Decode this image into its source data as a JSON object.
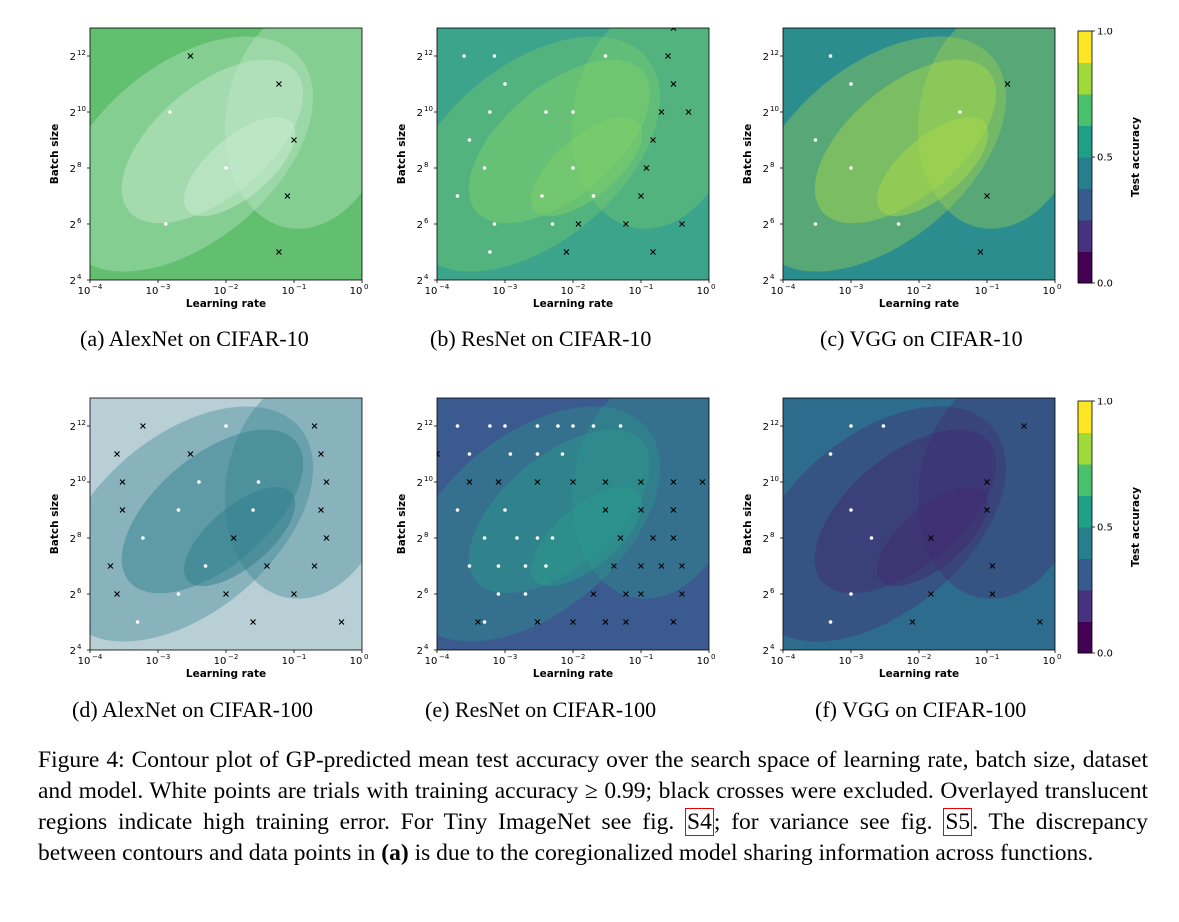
{
  "panels": [
    {
      "id": "a",
      "subcaption": "(a) AlexNet on CIFAR-10",
      "bg": "#62bf6f",
      "accent": "#c9ebd2",
      "row": 0,
      "col": 0
    },
    {
      "id": "b",
      "subcaption": "(b) ResNet on CIFAR-10",
      "bg": "#3ba48b",
      "accent": "#7fd06a",
      "row": 0,
      "col": 1
    },
    {
      "id": "c",
      "subcaption": "(c) VGG on CIFAR-10",
      "bg": "#2c8d8f",
      "accent": "#a8d94a",
      "row": 0,
      "col": 2
    },
    {
      "id": "d",
      "subcaption": "(d) AlexNet on CIFAR-100",
      "bg": "#b8cfd6",
      "accent": "#2f7e8b",
      "row": 1,
      "col": 0
    },
    {
      "id": "e",
      "subcaption": "(e) ResNet on CIFAR-100",
      "bg": "#3b5a8f",
      "accent": "#2a9a8b",
      "row": 1,
      "col": 1
    },
    {
      "id": "f",
      "subcaption": "(f) VGG on CIFAR-100",
      "bg": "#2e6c8e",
      "accent": "#41296f",
      "row": 1,
      "col": 2
    }
  ],
  "axes": {
    "xlabel": "Learning rate",
    "ylabel": "Batch size",
    "xticks": [
      "10",
      "10",
      "10",
      "10",
      "10"
    ],
    "xtick_exps": [
      "−4",
      "−3",
      "−2",
      "−1",
      "0"
    ],
    "yticks": [
      "2",
      "2",
      "2",
      "2",
      "2"
    ],
    "ytick_exps": [
      "4",
      "6",
      "8",
      "10",
      "12"
    ]
  },
  "colorbar": {
    "label": "Test accuracy",
    "ticks": [
      "0.0",
      "0.5",
      "1.0"
    ]
  },
  "caption": {
    "lead": "Figure 4: Contour plot of GP-predicted mean test accuracy over the search space of learning rate, batch size, dataset and model. White points are trials with training accuracy ≥ 0.99; black crosses were excluded. Overlayed translucent regions indicate high training error. For Tiny ImageNet see fig. ",
    "ref1": "S4",
    "mid": "; for variance see fig. ",
    "ref2": "S5",
    "mid2": ". The discrepancy between contours and data points in ",
    "bold": "(a)",
    "tail": " is due to the coregionalized model sharing information across functions."
  },
  "chart_data": [
    {
      "type": "scatter",
      "panel": "a",
      "x_scale": "log",
      "y_scale": "log2",
      "xlim": [
        0.0001,
        1
      ],
      "ylim": [
        16,
        8192
      ],
      "white_points": [
        [
          0.0015,
          1024
        ],
        [
          0.01,
          256
        ],
        [
          0.0013,
          64
        ]
      ],
      "black_crosses": [
        [
          0.003,
          4096
        ],
        [
          0.06,
          2048
        ],
        [
          0.1,
          512
        ],
        [
          0.08,
          128
        ],
        [
          0.06,
          32
        ]
      ]
    },
    {
      "type": "scatter",
      "panel": "b",
      "x_scale": "log",
      "y_scale": "log2",
      "xlim": [
        0.0001,
        1
      ],
      "ylim": [
        16,
        8192
      ],
      "white_points": [
        [
          0.00025,
          4096
        ],
        [
          0.0007,
          4096
        ],
        [
          0.001,
          2048
        ],
        [
          0.0003,
          512
        ],
        [
          0.0006,
          1024
        ],
        [
          0.0005,
          256
        ],
        [
          0.0002,
          128
        ],
        [
          0.0007,
          64
        ],
        [
          0.0006,
          32
        ],
        [
          0.0035,
          128
        ],
        [
          0.004,
          1024
        ],
        [
          0.01,
          1024
        ],
        [
          0.01,
          256
        ],
        [
          0.03,
          4096
        ],
        [
          0.005,
          64
        ],
        [
          0.02,
          128
        ]
      ],
      "black_crosses": [
        [
          0.3,
          8192
        ],
        [
          0.25,
          4096
        ],
        [
          0.3,
          2048
        ],
        [
          0.2,
          1024
        ],
        [
          0.5,
          1024
        ],
        [
          0.15,
          512
        ],
        [
          0.12,
          256
        ],
        [
          0.1,
          128
        ],
        [
          0.06,
          64
        ],
        [
          0.012,
          64
        ],
        [
          0.008,
          32
        ],
        [
          0.15,
          32
        ],
        [
          0.4,
          64
        ]
      ]
    },
    {
      "type": "scatter",
      "panel": "c",
      "x_scale": "log",
      "y_scale": "log2",
      "xlim": [
        0.0001,
        1
      ],
      "ylim": [
        16,
        8192
      ],
      "white_points": [
        [
          0.0005,
          4096
        ],
        [
          0.001,
          2048
        ],
        [
          0.0003,
          512
        ],
        [
          0.001,
          256
        ],
        [
          0.0003,
          64
        ],
        [
          0.005,
          64
        ],
        [
          0.04,
          1024
        ]
      ],
      "black_crosses": [
        [
          0.2,
          2048
        ],
        [
          0.1,
          128
        ],
        [
          0.08,
          32
        ]
      ]
    },
    {
      "type": "scatter",
      "panel": "d",
      "x_scale": "log",
      "y_scale": "log2",
      "xlim": [
        0.0001,
        1
      ],
      "ylim": [
        16,
        8192
      ],
      "white_points": [
        [
          0.01,
          4096
        ],
        [
          0.004,
          1024
        ],
        [
          0.03,
          1024
        ],
        [
          0.002,
          512
        ],
        [
          0.025,
          512
        ],
        [
          0.0006,
          256
        ],
        [
          0.005,
          128
        ],
        [
          0.002,
          64
        ],
        [
          0.0005,
          32
        ]
      ],
      "black_crosses": [
        [
          0.0006,
          4096
        ],
        [
          0.00025,
          2048
        ],
        [
          0.0003,
          1024
        ],
        [
          0.0003,
          512
        ],
        [
          0.0002,
          128
        ],
        [
          0.00025,
          64
        ],
        [
          0.003,
          2048
        ],
        [
          0.013,
          256
        ],
        [
          0.04,
          128
        ],
        [
          0.01,
          64
        ],
        [
          0.025,
          32
        ],
        [
          0.2,
          4096
        ],
        [
          0.25,
          2048
        ],
        [
          0.3,
          1024
        ],
        [
          0.25,
          512
        ],
        [
          0.3,
          256
        ],
        [
          0.2,
          128
        ],
        [
          0.1,
          64
        ],
        [
          0.5,
          32
        ]
      ]
    },
    {
      "type": "scatter",
      "panel": "e",
      "x_scale": "log",
      "y_scale": "log2",
      "xlim": [
        0.0001,
        1
      ],
      "ylim": [
        16,
        8192
      ],
      "white_points": [
        [
          0.0002,
          4096
        ],
        [
          0.0006,
          4096
        ],
        [
          0.001,
          4096
        ],
        [
          0.003,
          4096
        ],
        [
          0.006,
          4096
        ],
        [
          0.01,
          4096
        ],
        [
          0.02,
          4096
        ],
        [
          0.05,
          4096
        ],
        [
          0.0003,
          2048
        ],
        [
          0.0012,
          2048
        ],
        [
          0.003,
          2048
        ],
        [
          0.007,
          2048
        ],
        [
          0.0002,
          512
        ],
        [
          0.0005,
          256
        ],
        [
          0.001,
          512
        ],
        [
          0.0015,
          256
        ],
        [
          0.003,
          256
        ],
        [
          0.005,
          256
        ],
        [
          0.0003,
          128
        ],
        [
          0.0008,
          128
        ],
        [
          0.002,
          128
        ],
        [
          0.004,
          128
        ],
        [
          0.0008,
          64
        ],
        [
          0.002,
          64
        ],
        [
          0.0005,
          32
        ]
      ],
      "black_crosses": [
        [
          0.0001,
          2048
        ],
        [
          0.0003,
          1024
        ],
        [
          0.0008,
          1024
        ],
        [
          0.003,
          1024
        ],
        [
          0.01,
          1024
        ],
        [
          0.03,
          1024
        ],
        [
          0.1,
          1024
        ],
        [
          0.3,
          1024
        ],
        [
          0.8,
          1024
        ],
        [
          0.03,
          512
        ],
        [
          0.1,
          512
        ],
        [
          0.3,
          512
        ],
        [
          0.05,
          256
        ],
        [
          0.15,
          256
        ],
        [
          0.3,
          256
        ],
        [
          0.04,
          128
        ],
        [
          0.1,
          128
        ],
        [
          0.2,
          128
        ],
        [
          0.4,
          128
        ],
        [
          0.02,
          64
        ],
        [
          0.06,
          64
        ],
        [
          0.1,
          64
        ],
        [
          0.4,
          64
        ],
        [
          0.0004,
          32
        ],
        [
          0.003,
          32
        ],
        [
          0.01,
          32
        ],
        [
          0.03,
          32
        ],
        [
          0.06,
          32
        ],
        [
          0.3,
          32
        ]
      ]
    },
    {
      "type": "scatter",
      "panel": "f",
      "x_scale": "log",
      "y_scale": "log2",
      "xlim": [
        0.0001,
        1
      ],
      "ylim": [
        16,
        8192
      ],
      "white_points": [
        [
          0.0005,
          2048
        ],
        [
          0.001,
          4096
        ],
        [
          0.003,
          4096
        ],
        [
          0.001,
          512
        ],
        [
          0.002,
          256
        ],
        [
          0.001,
          64
        ],
        [
          0.0005,
          32
        ]
      ],
      "black_crosses": [
        [
          0.35,
          4096
        ],
        [
          0.1,
          1024
        ],
        [
          0.1,
          512
        ],
        [
          0.015,
          256
        ],
        [
          0.12,
          128
        ],
        [
          0.015,
          64
        ],
        [
          0.12,
          64
        ],
        [
          0.008,
          32
        ],
        [
          0.6,
          32
        ]
      ]
    }
  ]
}
